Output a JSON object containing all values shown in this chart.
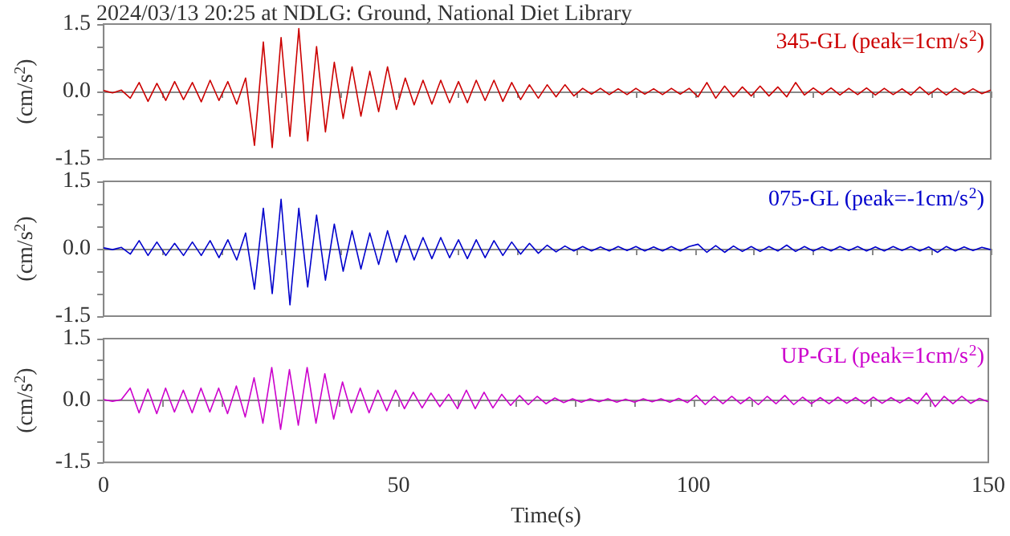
{
  "chart_data": [
    {
      "type": "line",
      "title": "2024/03/13 20:25 at NDLG: Ground, National Diet Library",
      "ylabel": "(cm/s$^{2}$)",
      "annotations": [
        "345-GL (peak=1cm/s$^{2}$)"
      ],
      "tick_labels": "y",
      "marker": "none",
      "line_style": "solid",
      "xlim": [
        0,
        150
      ],
      "xticks": [
        0,
        {
          "value": 10,
          "label": null
        },
        {
          "value": 20,
          "label": null
        },
        {
          "value": 30,
          "label": null
        },
        {
          "value": 40,
          "label": null
        },
        50,
        {
          "value": 60,
          "label": null
        },
        {
          "value": 70,
          "label": null
        },
        {
          "value": 80,
          "label": null
        },
        {
          "value": 90,
          "label": null
        },
        100,
        {
          "value": 110,
          "label": null
        },
        {
          "value": 120,
          "label": null
        },
        {
          "value": 130,
          "label": null
        },
        {
          "value": 140,
          "label": null
        },
        150
      ],
      "ylim": [
        -1.5,
        1.5
      ],
      "yticks": [
        {
          "value": -1.5,
          "label": "-1.5"
        },
        {
          "value": -1,
          "label": null
        },
        {
          "value": -0.5,
          "label": null
        },
        {
          "value": 0,
          "label": "0.0"
        },
        {
          "value": 0.5,
          "label": null
        },
        {
          "value": 1,
          "label": null
        },
        {
          "value": 1.5,
          "label": "1.5"
        }
      ],
      "x": [
        0,
        1.5,
        3,
        4.5,
        6,
        7.5,
        9,
        10.5,
        12,
        13.5,
        15,
        16.5,
        18,
        19.5,
        21,
        22.5,
        24,
        25.5,
        27,
        28.5,
        30,
        31.5,
        33,
        34.5,
        36,
        37.5,
        39,
        40.5,
        42,
        43.5,
        45,
        46.5,
        48,
        49.5,
        51,
        52.5,
        54,
        55.5,
        57,
        58.5,
        60,
        61.5,
        63,
        64.5,
        66,
        67.5,
        69,
        70.5,
        72,
        73.5,
        75,
        76.5,
        78,
        79.5,
        81,
        82.5,
        84,
        85.5,
        87,
        88.5,
        90,
        91.5,
        93,
        94.5,
        96,
        97.5,
        99,
        100.5,
        102,
        103.5,
        105,
        106.5,
        108,
        109.5,
        111,
        112.5,
        114,
        115.5,
        117,
        118.5,
        120,
        121.5,
        123,
        124.5,
        126,
        127.5,
        129,
        130.5,
        132,
        133.5,
        135,
        136.5,
        138,
        139.5,
        141,
        142.5,
        144,
        145.5,
        147,
        148.5,
        150
      ],
      "series": [
        {
          "color": "#cc0000",
          "values": [
            0.02,
            -0.03,
            0.03,
            -0.15,
            0.2,
            -0.22,
            0.18,
            -0.2,
            0.22,
            -0.18,
            0.2,
            -0.23,
            0.25,
            -0.2,
            0.22,
            -0.28,
            0.3,
            -1.2,
            1.1,
            -1.25,
            1.2,
            -1.0,
            1.4,
            -1.1,
            1.0,
            -0.9,
            0.65,
            -0.6,
            0.55,
            -0.55,
            0.45,
            -0.45,
            0.55,
            -0.4,
            0.3,
            -0.3,
            0.25,
            -0.28,
            0.25,
            -0.25,
            0.22,
            -0.25,
            0.25,
            -0.2,
            0.25,
            -0.22,
            0.2,
            -0.18,
            0.15,
            -0.15,
            0.15,
            -0.12,
            0.15,
            -0.1,
            0.07,
            -0.06,
            0.07,
            -0.07,
            0.06,
            -0.07,
            0.07,
            -0.06,
            0.06,
            -0.07,
            0.07,
            -0.06,
            0.07,
            -0.12,
            0.2,
            -0.15,
            0.12,
            -0.12,
            0.1,
            -0.1,
            0.12,
            -0.1,
            0.1,
            -0.12,
            0.2,
            -0.08,
            0.08,
            -0.07,
            0.08,
            -0.08,
            0.07,
            -0.07,
            0.08,
            -0.08,
            0.07,
            -0.07,
            0.06,
            -0.08,
            0.1,
            -0.07,
            0.07,
            -0.08,
            0.07,
            -0.06,
            0.06,
            -0.05,
            0.03
          ]
        }
      ]
    },
    {
      "type": "line",
      "ylabel": "(cm/s$^{2}$)",
      "annotations": [
        "075-GL (peak=-1cm/s$^{2}$)"
      ],
      "tick_labels": "y",
      "marker": "none",
      "line_style": "solid",
      "xlim": [
        0,
        150
      ],
      "xticks": [
        0,
        {
          "value": 10,
          "label": null
        },
        {
          "value": 20,
          "label": null
        },
        {
          "value": 30,
          "label": null
        },
        {
          "value": 40,
          "label": null
        },
        50,
        {
          "value": 60,
          "label": null
        },
        {
          "value": 70,
          "label": null
        },
        {
          "value": 80,
          "label": null
        },
        {
          "value": 90,
          "label": null
        },
        100,
        {
          "value": 110,
          "label": null
        },
        {
          "value": 120,
          "label": null
        },
        {
          "value": 130,
          "label": null
        },
        {
          "value": 140,
          "label": null
        },
        150
      ],
      "ylim": [
        -1.5,
        1.5
      ],
      "yticks": [
        {
          "value": -1.5,
          "label": "-1.5"
        },
        {
          "value": -1,
          "label": null
        },
        {
          "value": -0.5,
          "label": null
        },
        {
          "value": 0,
          "label": "0.0"
        },
        {
          "value": 0.5,
          "label": null
        },
        {
          "value": 1,
          "label": null
        },
        {
          "value": 1.5,
          "label": "1.5"
        }
      ],
      "x": [
        0,
        1.5,
        3,
        4.5,
        6,
        7.5,
        9,
        10.5,
        12,
        13.5,
        15,
        16.5,
        18,
        19.5,
        21,
        22.5,
        24,
        25.5,
        27,
        28.5,
        30,
        31.5,
        33,
        34.5,
        36,
        37.5,
        39,
        40.5,
        42,
        43.5,
        45,
        46.5,
        48,
        49.5,
        51,
        52.5,
        54,
        55.5,
        57,
        58.5,
        60,
        61.5,
        63,
        64.5,
        66,
        67.5,
        69,
        70.5,
        72,
        73.5,
        75,
        76.5,
        78,
        79.5,
        81,
        82.5,
        84,
        85.5,
        87,
        88.5,
        90,
        91.5,
        93,
        94.5,
        96,
        97.5,
        99,
        100.5,
        102,
        103.5,
        105,
        106.5,
        108,
        109.5,
        111,
        112.5,
        114,
        115.5,
        117,
        118.5,
        120,
        121.5,
        123,
        124.5,
        126,
        127.5,
        129,
        130.5,
        132,
        133.5,
        135,
        136.5,
        138,
        139.5,
        141,
        142.5,
        144,
        145.5,
        147,
        148.5,
        150
      ],
      "series": [
        {
          "color": "#0000cc",
          "values": [
            0.02,
            -0.02,
            0.03,
            -0.12,
            0.18,
            -0.15,
            0.15,
            -0.15,
            0.12,
            -0.15,
            0.15,
            -0.15,
            0.18,
            -0.2,
            0.2,
            -0.25,
            0.35,
            -0.9,
            0.9,
            -1.0,
            1.1,
            -1.25,
            0.9,
            -0.85,
            0.75,
            -0.7,
            0.55,
            -0.5,
            0.4,
            -0.45,
            0.35,
            -0.35,
            0.4,
            -0.3,
            0.3,
            -0.25,
            0.25,
            -0.22,
            0.25,
            -0.2,
            0.2,
            -0.22,
            0.2,
            -0.2,
            0.18,
            -0.15,
            0.15,
            -0.12,
            0.12,
            -0.1,
            0.08,
            -0.07,
            0.06,
            -0.05,
            0.05,
            -0.05,
            0.04,
            -0.05,
            0.05,
            -0.04,
            0.05,
            -0.05,
            0.04,
            -0.05,
            0.05,
            -0.05,
            0.05,
            0.1,
            -0.08,
            0.07,
            -0.08,
            0.06,
            -0.06,
            0.05,
            -0.06,
            0.05,
            -0.05,
            0.08,
            -0.06,
            0.05,
            -0.05,
            0.04,
            -0.05,
            0.05,
            -0.04,
            0.05,
            -0.05,
            0.04,
            -0.05,
            0.05,
            -0.04,
            0.05,
            -0.05,
            0.04,
            -0.08,
            0.05,
            -0.05,
            0.04,
            -0.04,
            0.03,
            -0.02
          ]
        }
      ]
    },
    {
      "type": "line",
      "ylabel": "(cm/s$^{2}$)",
      "xlabel": "Time(s)",
      "annotations": [
        "UP-GL (peak=1cm/s$^{2}$)"
      ],
      "marker": "none",
      "line_style": "solid",
      "xlim": [
        0,
        150
      ],
      "xticks": [
        0,
        {
          "value": 10,
          "label": null
        },
        {
          "value": 20,
          "label": null
        },
        {
          "value": 30,
          "label": null
        },
        {
          "value": 40,
          "label": null
        },
        50,
        {
          "value": 60,
          "label": null
        },
        {
          "value": 70,
          "label": null
        },
        {
          "value": 80,
          "label": null
        },
        {
          "value": 90,
          "label": null
        },
        100,
        {
          "value": 110,
          "label": null
        },
        {
          "value": 120,
          "label": null
        },
        {
          "value": 130,
          "label": null
        },
        {
          "value": 140,
          "label": null
        },
        150
      ],
      "ylim": [
        -1.5,
        1.5
      ],
      "yticks": [
        {
          "value": -1.5,
          "label": "-1.5"
        },
        {
          "value": -1,
          "label": null
        },
        {
          "value": -0.5,
          "label": null
        },
        {
          "value": 0,
          "label": "0.0"
        },
        {
          "value": 0.5,
          "label": null
        },
        {
          "value": 1,
          "label": null
        },
        {
          "value": 1.5,
          "label": "1.5"
        }
      ],
      "x": [
        0,
        1.5,
        3,
        4.5,
        6,
        7.5,
        9,
        10.5,
        12,
        13.5,
        15,
        16.5,
        18,
        19.5,
        21,
        22.5,
        24,
        25.5,
        27,
        28.5,
        30,
        31.5,
        33,
        34.5,
        36,
        37.5,
        39,
        40.5,
        42,
        43.5,
        45,
        46.5,
        48,
        49.5,
        51,
        52.5,
        54,
        55.5,
        57,
        58.5,
        60,
        61.5,
        63,
        64.5,
        66,
        67.5,
        69,
        70.5,
        72,
        73.5,
        75,
        76.5,
        78,
        79.5,
        81,
        82.5,
        84,
        85.5,
        87,
        88.5,
        90,
        91.5,
        93,
        94.5,
        96,
        97.5,
        99,
        100.5,
        102,
        103.5,
        105,
        106.5,
        108,
        109.5,
        111,
        112.5,
        114,
        115.5,
        117,
        118.5,
        120,
        121.5,
        123,
        124.5,
        126,
        127.5,
        129,
        130.5,
        132,
        133.5,
        135,
        136.5,
        138,
        139.5,
        141,
        142.5,
        144,
        145.5,
        147,
        148.5,
        150
      ],
      "series": [
        {
          "color": "#cc00cc",
          "values": [
            0.02,
            -0.02,
            0.02,
            0.3,
            -0.3,
            0.28,
            -0.32,
            0.3,
            -0.28,
            0.25,
            -0.3,
            0.3,
            -0.28,
            0.3,
            -0.32,
            0.35,
            -0.4,
            0.55,
            -0.55,
            0.8,
            -0.7,
            0.75,
            -0.6,
            0.8,
            -0.55,
            0.65,
            -0.45,
            0.45,
            -0.3,
            0.3,
            -0.3,
            0.25,
            -0.25,
            0.25,
            -0.2,
            0.2,
            -0.18,
            0.18,
            -0.15,
            0.15,
            -0.2,
            0.25,
            -0.2,
            0.2,
            -0.18,
            0.15,
            -0.12,
            0.12,
            -0.1,
            0.1,
            -0.08,
            0.06,
            -0.05,
            0.04,
            -0.04,
            0.04,
            -0.03,
            0.04,
            -0.04,
            0.03,
            -0.04,
            0.04,
            -0.03,
            0.04,
            -0.04,
            0.05,
            -0.05,
            0.12,
            -0.1,
            0.1,
            -0.08,
            0.1,
            -0.08,
            0.08,
            -0.1,
            0.1,
            -0.08,
            0.12,
            -0.1,
            0.08,
            -0.08,
            0.07,
            -0.08,
            0.08,
            -0.07,
            0.07,
            -0.08,
            0.08,
            -0.07,
            0.07,
            -0.06,
            0.07,
            -0.08,
            0.18,
            -0.15,
            0.1,
            -0.08,
            0.1,
            -0.07,
            0.05,
            -0.03
          ]
        }
      ]
    }
  ]
}
